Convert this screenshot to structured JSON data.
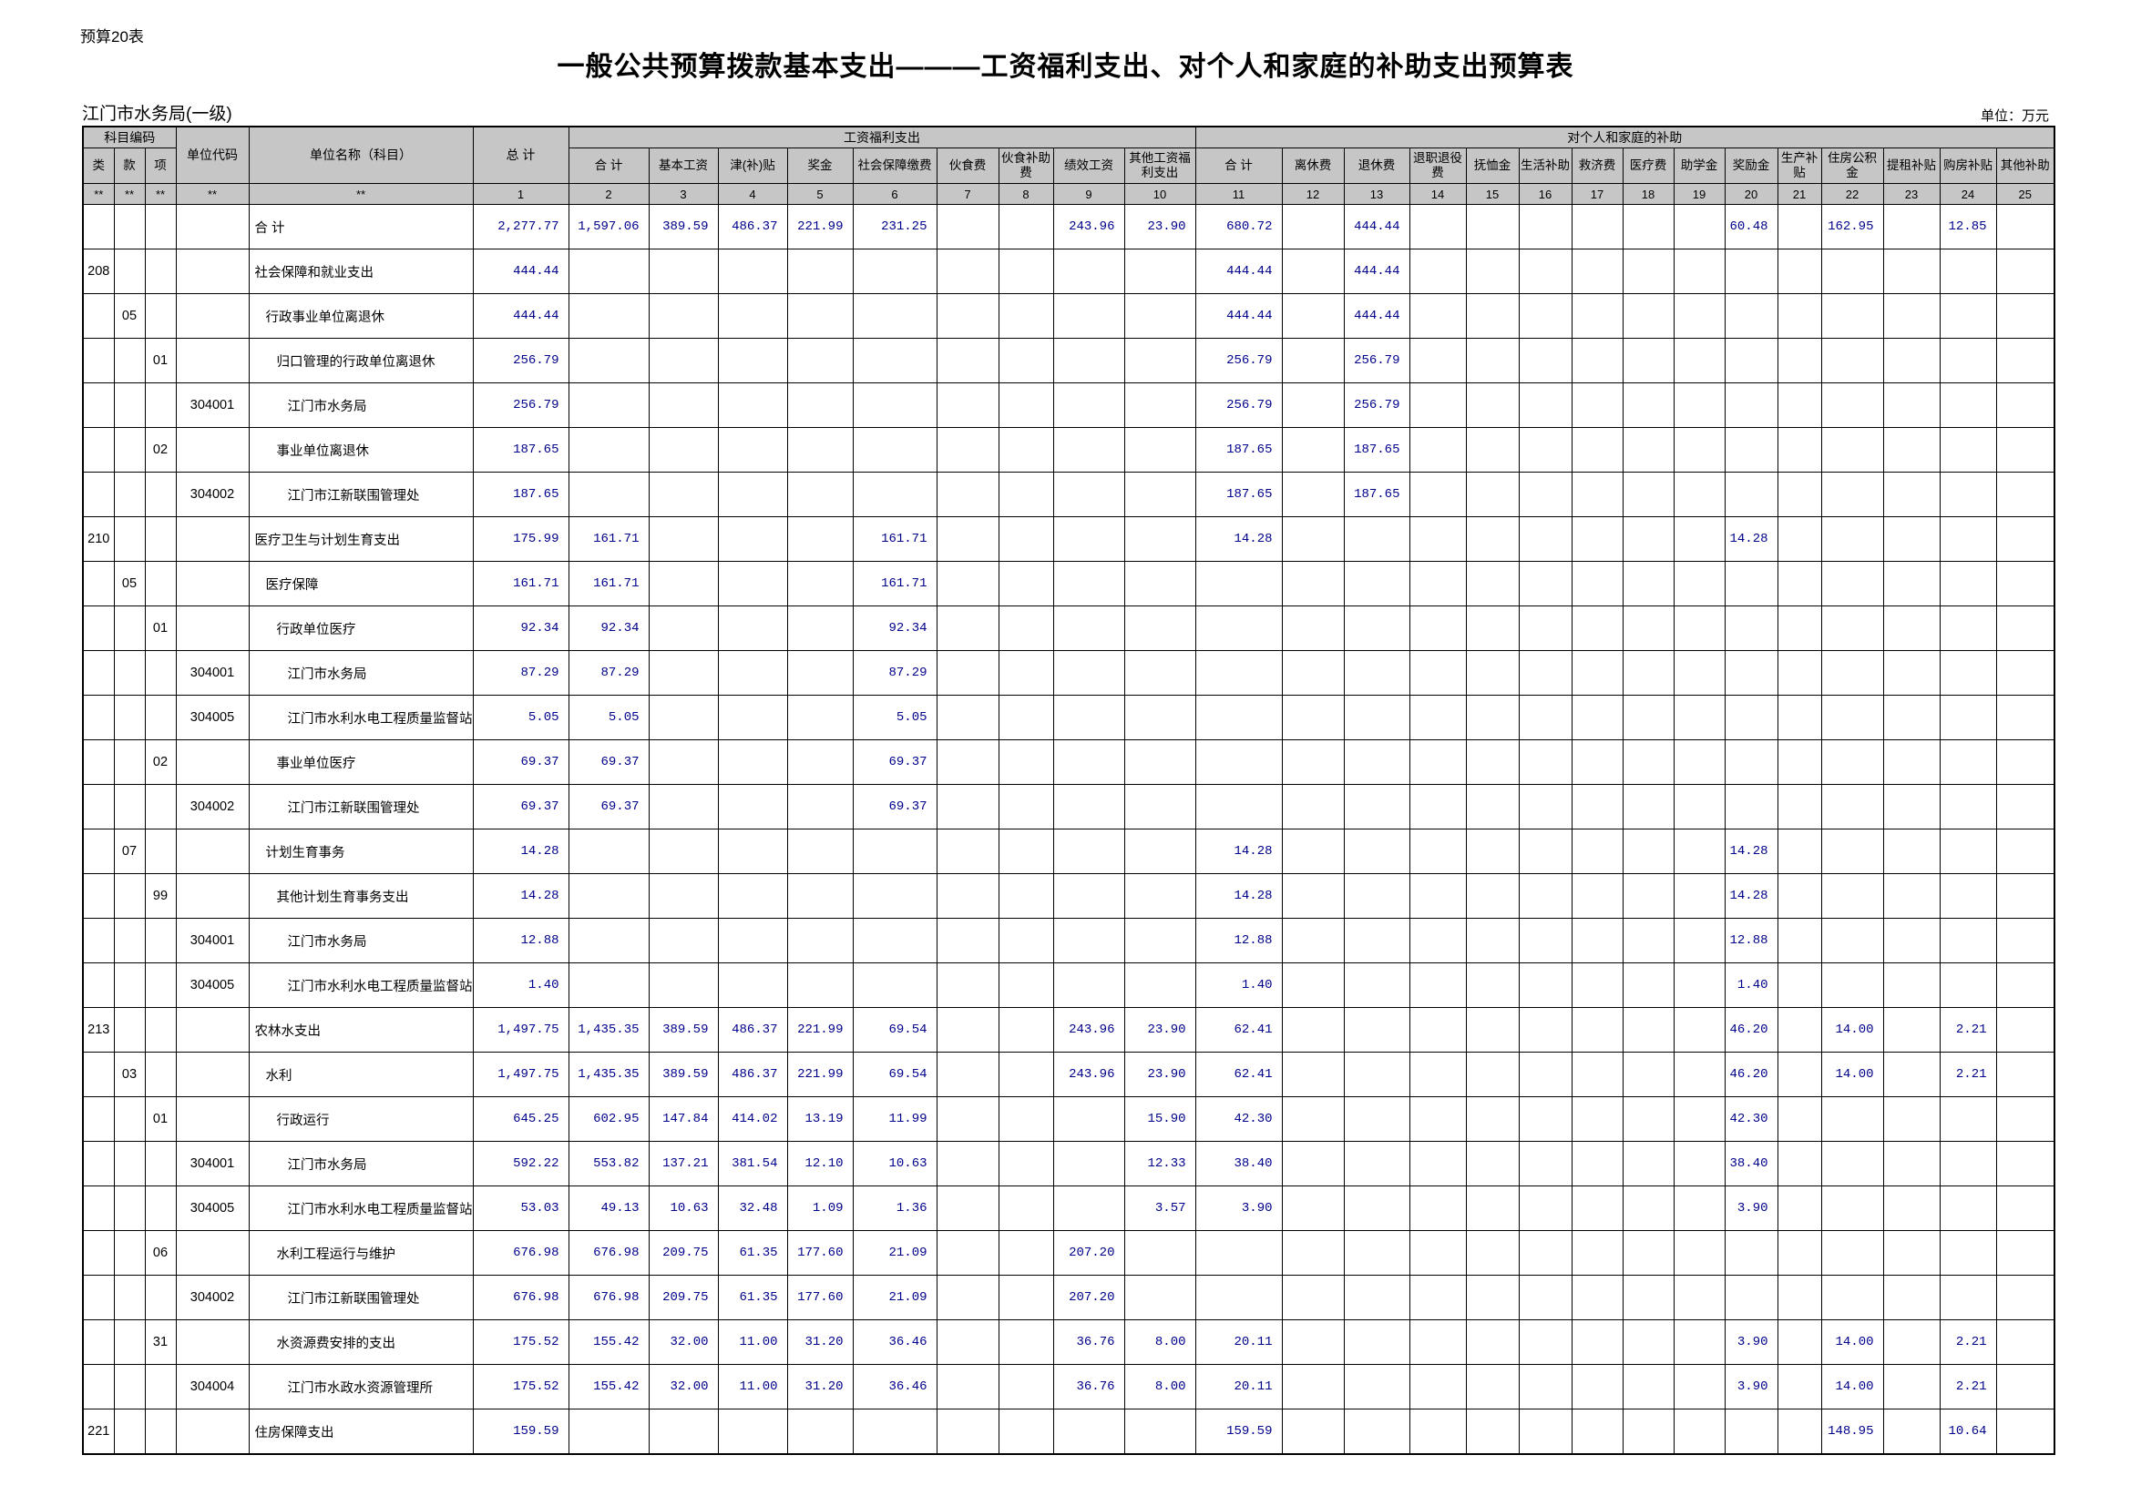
{
  "page": {
    "sheet_label": "预算20表",
    "title": "一般公共预算拨款基本支出———工资福利支出、对个人和家庭的补助支出预算表",
    "org_name": "江门市水务局(一级)",
    "unit_note": "单位：万元"
  },
  "colors": {
    "header_bg": "#c6c6c6",
    "value_text": "#00008b",
    "border": "#000000"
  },
  "table": {
    "header": {
      "subject_code_group": "科目编码",
      "code_cols": [
        "类",
        "款",
        "项"
      ],
      "unit_code": "单位代码",
      "unit_name": "单位名称（科目）",
      "grand_total": "总  计",
      "groups": [
        {
          "label": "工资福利支出",
          "cols": [
            "合  计",
            "基本工资",
            "津(补)贴",
            "奖金",
            "社会保障缴费",
            "伙食费",
            "伙食补助费",
            "绩效工资",
            "其他工资福利支出"
          ]
        },
        {
          "label": "对个人和家庭的补助",
          "cols": [
            "合  计",
            "离休费",
            "退休费",
            "退职退役费",
            "抚恤金",
            "生活补助",
            "救济费",
            "医疗费",
            "助学金",
            "奖励金",
            "生产补贴",
            "住房公积金",
            "提租补贴",
            "购房补贴",
            "其他补助"
          ]
        }
      ],
      "index_row": [
        "**",
        "**",
        "**",
        "**",
        "**",
        "1",
        "2",
        "3",
        "4",
        "5",
        "6",
        "7",
        "8",
        "9",
        "10",
        "11",
        "12",
        "13",
        "14",
        "15",
        "16",
        "17",
        "18",
        "19",
        "20",
        "21",
        "22",
        "23",
        "24",
        "25"
      ]
    },
    "rows": [
      {
        "lei": "",
        "kuan": "",
        "xiang": "",
        "code": "",
        "name": "合  计",
        "indent": 0,
        "v": {
          "1": "2,277.77",
          "2": "1,597.06",
          "3": "389.59",
          "4": "486.37",
          "5": "221.99",
          "6": "231.25",
          "9": "243.96",
          "10": "23.90",
          "11": "680.72",
          "13": "444.44",
          "20": "60.48",
          "22": "162.95",
          "24": "12.85"
        }
      },
      {
        "lei": "208",
        "kuan": "",
        "xiang": "",
        "code": "",
        "name": "社会保障和就业支出",
        "indent": 0,
        "v": {
          "1": "444.44",
          "11": "444.44",
          "13": "444.44"
        }
      },
      {
        "lei": "",
        "kuan": "05",
        "xiang": "",
        "code": "",
        "name": "行政事业单位离退休",
        "indent": 1,
        "v": {
          "1": "444.44",
          "11": "444.44",
          "13": "444.44"
        }
      },
      {
        "lei": "",
        "kuan": "",
        "xiang": "01",
        "code": "",
        "name": "归口管理的行政单位离退休",
        "indent": 2,
        "v": {
          "1": "256.79",
          "11": "256.79",
          "13": "256.79"
        }
      },
      {
        "lei": "",
        "kuan": "",
        "xiang": "",
        "code": "304001",
        "name": "江门市水务局",
        "indent": 3,
        "v": {
          "1": "256.79",
          "11": "256.79",
          "13": "256.79"
        }
      },
      {
        "lei": "",
        "kuan": "",
        "xiang": "02",
        "code": "",
        "name": "事业单位离退休",
        "indent": 2,
        "v": {
          "1": "187.65",
          "11": "187.65",
          "13": "187.65"
        }
      },
      {
        "lei": "",
        "kuan": "",
        "xiang": "",
        "code": "304002",
        "name": "江门市江新联围管理处",
        "indent": 3,
        "v": {
          "1": "187.65",
          "11": "187.65",
          "13": "187.65"
        }
      },
      {
        "lei": "210",
        "kuan": "",
        "xiang": "",
        "code": "",
        "name": "医疗卫生与计划生育支出",
        "indent": 0,
        "v": {
          "1": "175.99",
          "2": "161.71",
          "6": "161.71",
          "11": "14.28",
          "20": "14.28"
        }
      },
      {
        "lei": "",
        "kuan": "05",
        "xiang": "",
        "code": "",
        "name": "医疗保障",
        "indent": 1,
        "v": {
          "1": "161.71",
          "2": "161.71",
          "6": "161.71"
        }
      },
      {
        "lei": "",
        "kuan": "",
        "xiang": "01",
        "code": "",
        "name": "行政单位医疗",
        "indent": 2,
        "v": {
          "1": "92.34",
          "2": "92.34",
          "6": "92.34"
        }
      },
      {
        "lei": "",
        "kuan": "",
        "xiang": "",
        "code": "304001",
        "name": "江门市水务局",
        "indent": 3,
        "v": {
          "1": "87.29",
          "2": "87.29",
          "6": "87.29"
        }
      },
      {
        "lei": "",
        "kuan": "",
        "xiang": "",
        "code": "304005",
        "name": "江门市水利水电工程质量监督站",
        "indent": 3,
        "v": {
          "1": "5.05",
          "2": "5.05",
          "6": "5.05"
        }
      },
      {
        "lei": "",
        "kuan": "",
        "xiang": "02",
        "code": "",
        "name": "事业单位医疗",
        "indent": 2,
        "v": {
          "1": "69.37",
          "2": "69.37",
          "6": "69.37"
        }
      },
      {
        "lei": "",
        "kuan": "",
        "xiang": "",
        "code": "304002",
        "name": "江门市江新联围管理处",
        "indent": 3,
        "v": {
          "1": "69.37",
          "2": "69.37",
          "6": "69.37"
        }
      },
      {
        "lei": "",
        "kuan": "07",
        "xiang": "",
        "code": "",
        "name": "计划生育事务",
        "indent": 1,
        "v": {
          "1": "14.28",
          "11": "14.28",
          "20": "14.28"
        }
      },
      {
        "lei": "",
        "kuan": "",
        "xiang": "99",
        "code": "",
        "name": "其他计划生育事务支出",
        "indent": 2,
        "v": {
          "1": "14.28",
          "11": "14.28",
          "20": "14.28"
        }
      },
      {
        "lei": "",
        "kuan": "",
        "xiang": "",
        "code": "304001",
        "name": "江门市水务局",
        "indent": 3,
        "v": {
          "1": "12.88",
          "11": "12.88",
          "20": "12.88"
        }
      },
      {
        "lei": "",
        "kuan": "",
        "xiang": "",
        "code": "304005",
        "name": "江门市水利水电工程质量监督站",
        "indent": 3,
        "v": {
          "1": "1.40",
          "11": "1.40",
          "20": "1.40"
        }
      },
      {
        "lei": "213",
        "kuan": "",
        "xiang": "",
        "code": "",
        "name": "农林水支出",
        "indent": 0,
        "v": {
          "1": "1,497.75",
          "2": "1,435.35",
          "3": "389.59",
          "4": "486.37",
          "5": "221.99",
          "6": "69.54",
          "9": "243.96",
          "10": "23.90",
          "11": "62.41",
          "20": "46.20",
          "22": "14.00",
          "24": "2.21"
        }
      },
      {
        "lei": "",
        "kuan": "03",
        "xiang": "",
        "code": "",
        "name": "水利",
        "indent": 1,
        "v": {
          "1": "1,497.75",
          "2": "1,435.35",
          "3": "389.59",
          "4": "486.37",
          "5": "221.99",
          "6": "69.54",
          "9": "243.96",
          "10": "23.90",
          "11": "62.41",
          "20": "46.20",
          "22": "14.00",
          "24": "2.21"
        }
      },
      {
        "lei": "",
        "kuan": "",
        "xiang": "01",
        "code": "",
        "name": "行政运行",
        "indent": 2,
        "v": {
          "1": "645.25",
          "2": "602.95",
          "3": "147.84",
          "4": "414.02",
          "5": "13.19",
          "6": "11.99",
          "10": "15.90",
          "11": "42.30",
          "20": "42.30"
        }
      },
      {
        "lei": "",
        "kuan": "",
        "xiang": "",
        "code": "304001",
        "name": "江门市水务局",
        "indent": 3,
        "v": {
          "1": "592.22",
          "2": "553.82",
          "3": "137.21",
          "4": "381.54",
          "5": "12.10",
          "6": "10.63",
          "10": "12.33",
          "11": "38.40",
          "20": "38.40"
        }
      },
      {
        "lei": "",
        "kuan": "",
        "xiang": "",
        "code": "304005",
        "name": "江门市水利水电工程质量监督站",
        "indent": 3,
        "v": {
          "1": "53.03",
          "2": "49.13",
          "3": "10.63",
          "4": "32.48",
          "5": "1.09",
          "6": "1.36",
          "10": "3.57",
          "11": "3.90",
          "20": "3.90"
        }
      },
      {
        "lei": "",
        "kuan": "",
        "xiang": "06",
        "code": "",
        "name": "水利工程运行与维护",
        "indent": 2,
        "v": {
          "1": "676.98",
          "2": "676.98",
          "3": "209.75",
          "4": "61.35",
          "5": "177.60",
          "6": "21.09",
          "9": "207.20"
        }
      },
      {
        "lei": "",
        "kuan": "",
        "xiang": "",
        "code": "304002",
        "name": "江门市江新联围管理处",
        "indent": 3,
        "v": {
          "1": "676.98",
          "2": "676.98",
          "3": "209.75",
          "4": "61.35",
          "5": "177.60",
          "6": "21.09",
          "9": "207.20"
        }
      },
      {
        "lei": "",
        "kuan": "",
        "xiang": "31",
        "code": "",
        "name": "水资源费安排的支出",
        "indent": 2,
        "v": {
          "1": "175.52",
          "2": "155.42",
          "3": "32.00",
          "4": "11.00",
          "5": "31.20",
          "6": "36.46",
          "9": "36.76",
          "10": "8.00",
          "11": "20.11",
          "20": "3.90",
          "22": "14.00",
          "24": "2.21"
        }
      },
      {
        "lei": "",
        "kuan": "",
        "xiang": "",
        "code": "304004",
        "name": "江门市水政水资源管理所",
        "indent": 3,
        "v": {
          "1": "175.52",
          "2": "155.42",
          "3": "32.00",
          "4": "11.00",
          "5": "31.20",
          "6": "36.46",
          "9": "36.76",
          "10": "8.00",
          "11": "20.11",
          "20": "3.90",
          "22": "14.00",
          "24": "2.21"
        }
      },
      {
        "lei": "221",
        "kuan": "",
        "xiang": "",
        "code": "",
        "name": "住房保障支出",
        "indent": 0,
        "v": {
          "1": "159.59",
          "11": "159.59",
          "22": "148.95",
          "24": "10.64"
        }
      }
    ]
  }
}
